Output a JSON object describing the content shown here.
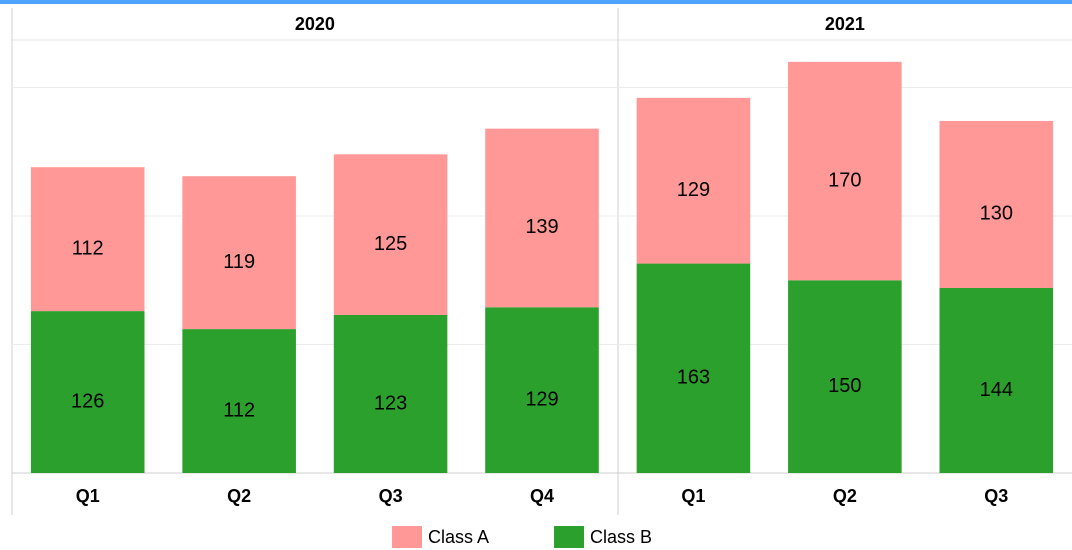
{
  "chart_data": {
    "type": "stacked_bar",
    "groups": [
      {
        "label": "2020",
        "categories": [
          "Q1",
          "Q2",
          "Q3",
          "Q4"
        ]
      },
      {
        "label": "2021",
        "categories": [
          "Q1",
          "Q2",
          "Q3"
        ]
      }
    ],
    "series": [
      {
        "name": "Class B",
        "color": "#2ca02c",
        "values": [
          126,
          112,
          123,
          129,
          163,
          150,
          144
        ]
      },
      {
        "name": "Class A",
        "color": "#ff9896",
        "values": [
          112,
          119,
          125,
          139,
          129,
          170,
          130
        ]
      }
    ],
    "ylim": [
      0,
      337
    ],
    "yticks": [
      0,
      100,
      200,
      300
    ],
    "grid": true
  }
}
